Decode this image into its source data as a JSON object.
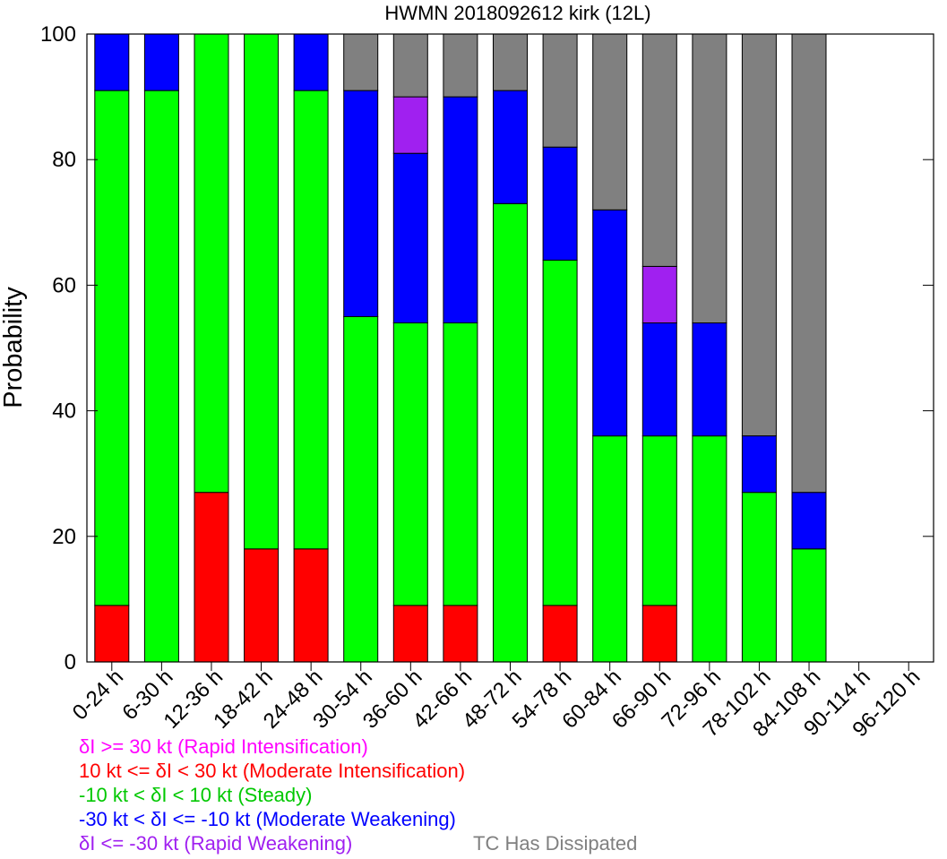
{
  "chart_data": {
    "type": "bar",
    "stacked": true,
    "title": "HWMN 2018092612 kirk (12L)",
    "xlabel": "",
    "ylabel": "Probability",
    "ylim": [
      0,
      100
    ],
    "yticks": [
      0,
      20,
      40,
      60,
      80,
      100
    ],
    "categories": [
      "0-24 h",
      "6-30 h",
      "12-36 h",
      "18-42 h",
      "24-48 h",
      "30-54 h",
      "36-60 h",
      "42-66 h",
      "48-72 h",
      "54-78 h",
      "60-84 h",
      "66-90 h",
      "72-96 h",
      "78-102 h",
      "84-108 h",
      "90-114 h",
      "96-120 h"
    ],
    "series": [
      {
        "name": "δI >= 30 kt (Rapid Intensification)",
        "color": "#ff00ff",
        "values": [
          0,
          0,
          0,
          0,
          0,
          0,
          0,
          0,
          0,
          0,
          0,
          0,
          0,
          0,
          0,
          0,
          0
        ]
      },
      {
        "name": "10 kt <= δI < 30 kt (Moderate Intensification)",
        "color": "#ff0000",
        "values": [
          9,
          0,
          27,
          18,
          18,
          0,
          9,
          9,
          0,
          9,
          0,
          9,
          0,
          0,
          0,
          0,
          0
        ]
      },
      {
        "name": "-10 kt < δI < 10 kt (Steady)",
        "color": "#00ff00",
        "values": [
          82,
          91,
          73,
          82,
          73,
          55,
          45,
          45,
          73,
          55,
          36,
          27,
          36,
          27,
          18,
          0,
          0
        ]
      },
      {
        "name": "-30 kt < δI <= -10 kt (Moderate Weakening)",
        "color": "#0000ff",
        "values": [
          9,
          9,
          0,
          0,
          9,
          36,
          27,
          36,
          18,
          18,
          36,
          18,
          18,
          9,
          9,
          0,
          0
        ]
      },
      {
        "name": "δI <= -30 kt (Rapid Weakening)",
        "color": "#a020f0",
        "values": [
          0,
          0,
          0,
          0,
          0,
          0,
          9,
          0,
          0,
          0,
          0,
          9,
          0,
          0,
          0,
          0,
          0
        ]
      },
      {
        "name": "TC Has Dissipated",
        "color": "#808080",
        "values": [
          0,
          0,
          0,
          0,
          0,
          9,
          10,
          10,
          9,
          18,
          28,
          37,
          46,
          64,
          73,
          0,
          0
        ]
      }
    ],
    "legend": [
      {
        "text": "δI >= 30 kt (Rapid Intensification)",
        "color": "#ff00ff"
      },
      {
        "text": "10 kt <= δI < 30 kt (Moderate Intensification)",
        "color": "#ff0000"
      },
      {
        "text": "-10 kt < δI < 10 kt (Steady)",
        "color": "#00c800"
      },
      {
        "text": "-30 kt < δI <= -10 kt (Moderate Weakening)",
        "color": "#0000ff"
      },
      {
        "text": "δI <= -30 kt (Rapid Weakening)",
        "color": "#a020f0"
      },
      {
        "text": "TC Has Dissipated",
        "color": "#808080"
      }
    ],
    "legend_placement": "bottom-left",
    "grid": false
  }
}
